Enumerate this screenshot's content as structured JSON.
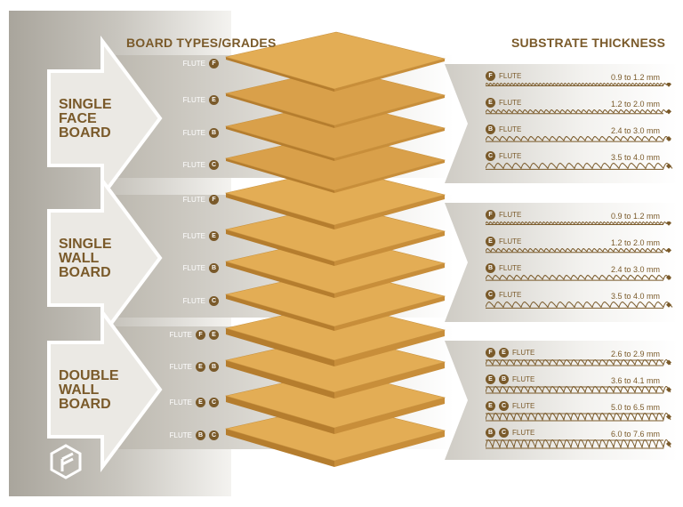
{
  "titles": {
    "left": "BOARD TYPES/GRADES",
    "right": "SUBSTRATE THICKNESS"
  },
  "colors": {
    "accent": "#7a5a2a",
    "board": "#e0a94c",
    "panel": "#cfccc5"
  },
  "flute_word": "FLUTE",
  "groups": [
    {
      "name": [
        "SINGLE",
        "FACE",
        "BOARD"
      ],
      "flutes": [
        [
          "F"
        ],
        [
          "E"
        ],
        [
          "B"
        ],
        [
          "C"
        ]
      ],
      "thickness": [
        "0.9 to 1.2 mm",
        "1.2 to 2.0 mm",
        "2.4 to 3.0 mm",
        "3.5 to 4.0 mm"
      ]
    },
    {
      "name": [
        "SINGLE",
        "WALL",
        "BOARD"
      ],
      "flutes": [
        [
          "F"
        ],
        [
          "E"
        ],
        [
          "B"
        ],
        [
          "C"
        ]
      ],
      "thickness": [
        "0.9 to 1.2 mm",
        "1.2 to 2.0 mm",
        "2.4 to 3.0 mm",
        "3.5 to 4.0 mm"
      ]
    },
    {
      "name": [
        "DOUBLE",
        "WALL",
        "BOARD"
      ],
      "flutes": [
        [
          "F",
          "E"
        ],
        [
          "E",
          "B"
        ],
        [
          "E",
          "C"
        ],
        [
          "B",
          "C"
        ]
      ],
      "thickness": [
        "2.6 to 2.9 mm",
        "3.6 to 4.1 mm",
        "5.0 to 6.5 mm",
        "6.0 to 7.6 mm"
      ]
    }
  ],
  "logo_icon": "box-logo-icon"
}
